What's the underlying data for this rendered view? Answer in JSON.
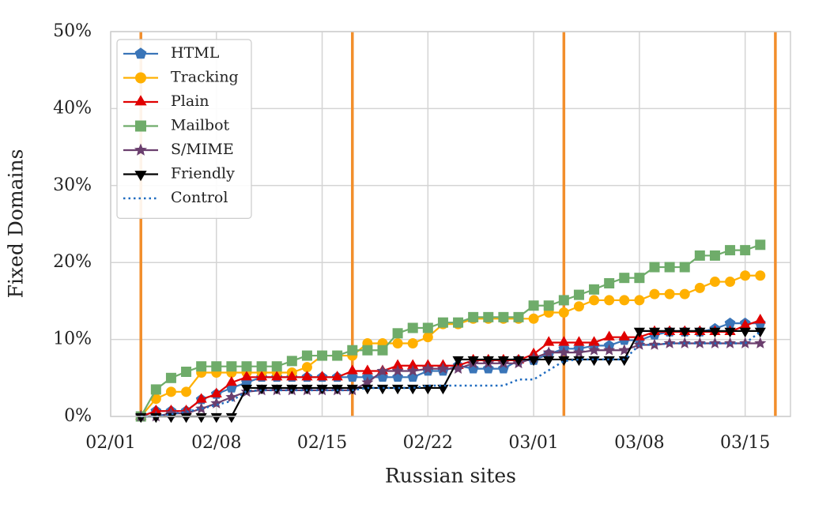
{
  "chart_data": {
    "type": "line",
    "x_label": "Russian sites",
    "y_label": "Fixed Domains",
    "xlim": [
      0,
      45
    ],
    "xticks": [
      {
        "value": 0,
        "label": "02/01"
      },
      {
        "value": 7,
        "label": "02/08"
      },
      {
        "value": 14,
        "label": "02/15"
      },
      {
        "value": 21,
        "label": "02/22"
      },
      {
        "value": 28,
        "label": "03/01"
      },
      {
        "value": 35,
        "label": "03/08"
      },
      {
        "value": 42,
        "label": "03/15"
      }
    ],
    "ylim": [
      0,
      50
    ],
    "yticks": [
      {
        "value": 0,
        "label": "0%"
      },
      {
        "value": 10,
        "label": "10%"
      },
      {
        "value": 20,
        "label": "20%"
      },
      {
        "value": 30,
        "label": "30%"
      },
      {
        "value": 40,
        "label": "40%"
      },
      {
        "value": 50,
        "label": "50%"
      }
    ],
    "grid": true,
    "legend": "upper left",
    "vlines": {
      "color": "#f28e2b",
      "values": [
        2,
        16,
        30,
        44
      ]
    },
    "x": [
      2,
      3,
      4,
      5,
      6,
      7,
      8,
      9,
      10,
      11,
      12,
      13,
      14,
      15,
      16,
      17,
      18,
      19,
      20,
      21,
      22,
      23,
      24,
      25,
      26,
      27,
      28,
      29,
      30,
      31,
      32,
      33,
      34,
      35,
      36,
      37,
      38,
      39,
      40,
      41,
      42,
      43
    ],
    "series": [
      {
        "name": "HTML",
        "color": "#3a75b8",
        "marker": "pentagon",
        "linestyle": "solid",
        "values": [
          0,
          0.7,
          0.7,
          0.7,
          2.2,
          2.9,
          3.7,
          4.4,
          5.1,
          5.1,
          5.1,
          5.1,
          5.1,
          5.1,
          5.1,
          5.1,
          5.1,
          5.1,
          5.1,
          5.9,
          5.9,
          6.6,
          6.2,
          6.2,
          6.2,
          7.3,
          7.3,
          8.1,
          8.8,
          8.8,
          9.2,
          9.2,
          9.9,
          9.9,
          10.6,
          11.0,
          11.0,
          11.0,
          11.4,
          12.1,
          12.1,
          12.1
        ]
      },
      {
        "name": "Tracking",
        "color": "#ffb000",
        "marker": "circle",
        "linestyle": "solid",
        "values": [
          0,
          2.3,
          3.2,
          3.2,
          5.7,
          5.7,
          5.7,
          5.7,
          5.7,
          5.7,
          5.7,
          6.4,
          7.9,
          7.9,
          7.9,
          9.5,
          9.5,
          9.5,
          9.5,
          10.3,
          12.0,
          12.0,
          12.7,
          12.7,
          12.7,
          12.7,
          12.7,
          13.5,
          13.5,
          14.3,
          15.1,
          15.1,
          15.1,
          15.1,
          15.9,
          15.9,
          15.9,
          16.7,
          17.5,
          17.5,
          18.3,
          18.3
        ]
      },
      {
        "name": "Plain",
        "color": "#e00000",
        "marker": "triangle-up",
        "linestyle": "solid",
        "values": [
          0,
          0.7,
          0.7,
          0.7,
          2.2,
          2.9,
          4.4,
          5.1,
          5.1,
          5.1,
          5.1,
          5.1,
          5.1,
          5.1,
          5.9,
          5.9,
          5.9,
          6.6,
          6.6,
          6.6,
          6.6,
          6.6,
          7.3,
          7.3,
          7.3,
          7.3,
          8.1,
          9.6,
          9.6,
          9.6,
          9.6,
          10.3,
          10.3,
          10.3,
          11.0,
          11.0,
          11.0,
          11.0,
          11.0,
          11.0,
          11.8,
          12.5
        ]
      },
      {
        "name": "Mailbot",
        "color": "#6fac6a",
        "marker": "square",
        "linestyle": "solid",
        "values": [
          0,
          3.5,
          5.0,
          5.8,
          6.5,
          6.5,
          6.5,
          6.5,
          6.5,
          6.5,
          7.2,
          7.9,
          7.9,
          7.9,
          8.6,
          8.6,
          8.6,
          10.8,
          11.5,
          11.5,
          12.2,
          12.2,
          12.9,
          12.9,
          12.9,
          12.9,
          14.4,
          14.4,
          15.1,
          15.8,
          16.5,
          17.3,
          18.0,
          18.0,
          19.4,
          19.4,
          19.4,
          20.9,
          20.9,
          21.6,
          21.6,
          22.3
        ]
      },
      {
        "name": "S/MIME",
        "color": "#6b3f6e",
        "marker": "star",
        "linestyle": "solid",
        "values": [
          0,
          0,
          0.4,
          0.4,
          1.0,
          1.7,
          2.5,
          3.2,
          3.4,
          3.4,
          3.4,
          3.4,
          3.4,
          3.4,
          3.4,
          4.4,
          5.9,
          5.9,
          5.9,
          6.2,
          6.2,
          6.2,
          6.9,
          6.9,
          6.9,
          6.9,
          7.6,
          8.3,
          8.3,
          8.3,
          8.6,
          8.6,
          8.6,
          9.3,
          9.3,
          9.5,
          9.5,
          9.5,
          9.5,
          9.5,
          9.5,
          9.5
        ]
      },
      {
        "name": "Friendly",
        "color": "#000000",
        "marker": "triangle-down",
        "linestyle": "solid",
        "values": [
          0,
          0,
          0,
          0,
          0,
          0,
          0,
          3.7,
          3.7,
          3.7,
          3.7,
          3.7,
          3.7,
          3.7,
          3.7,
          3.7,
          3.7,
          3.7,
          3.7,
          3.7,
          3.7,
          7.4,
          7.4,
          7.4,
          7.4,
          7.4,
          7.4,
          7.4,
          7.4,
          7.4,
          7.4,
          7.4,
          7.4,
          11.1,
          11.1,
          11.1,
          11.1,
          11.1,
          11.1,
          11.1,
          11.1,
          11.1
        ]
      },
      {
        "name": "Control",
        "color": "#1f6bbf",
        "marker": "none",
        "linestyle": "dotted",
        "values": [
          0,
          0,
          0.3,
          0.6,
          1.0,
          1.5,
          2.0,
          3.3,
          3.4,
          3.4,
          3.4,
          3.4,
          3.4,
          3.4,
          3.4,
          3.7,
          3.7,
          3.7,
          3.7,
          4.0,
          4.0,
          4.0,
          4.0,
          4.0,
          4.0,
          4.8,
          4.8,
          6.0,
          7.2,
          7.4,
          7.4,
          7.4,
          7.4,
          9.3,
          9.3,
          9.5,
          9.5,
          9.5,
          9.5,
          9.5,
          9.5,
          11.0
        ]
      }
    ]
  }
}
